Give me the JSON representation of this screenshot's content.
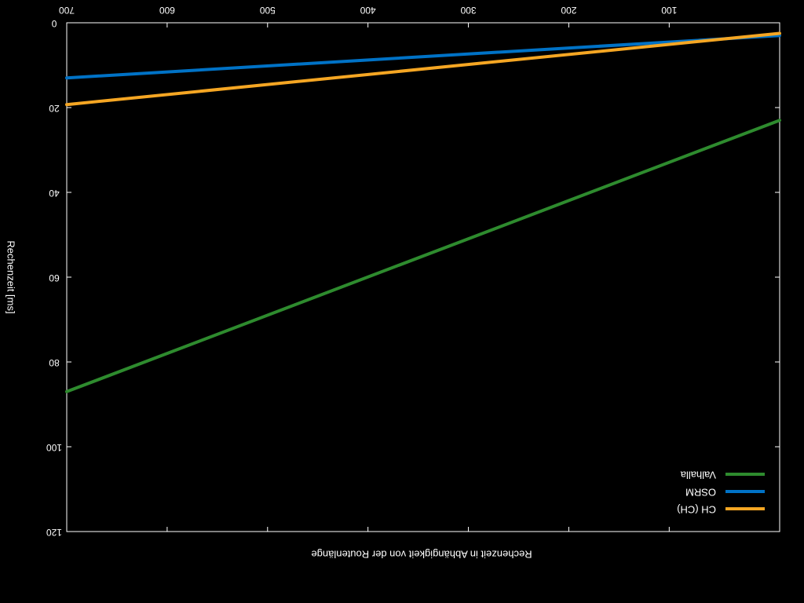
{
  "chart_data": {
    "type": "line",
    "orientation": "mirrored horizontally and flipped vertically (rendered upside-down)",
    "title": "",
    "xlabel": "Rechenzeit in Abhängigkeit von der Routenlänge",
    "ylabel": "Rechenzeit [ms]",
    "xlim": [
      -10,
      700
    ],
    "ylim": [
      0,
      120
    ],
    "x_ticks": [
      100,
      200,
      300,
      400,
      500,
      600,
      700
    ],
    "x_tick_labels": [
      "100",
      "200",
      "300",
      "400",
      "500",
      "600",
      "700"
    ],
    "y_ticks": [
      0,
      20,
      40,
      60,
      80,
      100,
      120
    ],
    "y_tick_labels": [
      "0",
      "20",
      "40",
      "60",
      "80",
      "100",
      "120"
    ],
    "grid": false,
    "legend_position": "bottom-right",
    "series": [
      {
        "name": "Valhalla",
        "color": "#2e8b2e",
        "x": [
          -10,
          700
        ],
        "y": [
          23,
          87
        ]
      },
      {
        "name": "OSRM",
        "color": "#0072c6",
        "x": [
          -10,
          700
        ],
        "y": [
          3,
          13
        ]
      },
      {
        "name": "CH (CH)",
        "color": "#f5a623",
        "x": [
          -10,
          700
        ],
        "y": [
          2.5,
          19.3
        ]
      }
    ]
  }
}
